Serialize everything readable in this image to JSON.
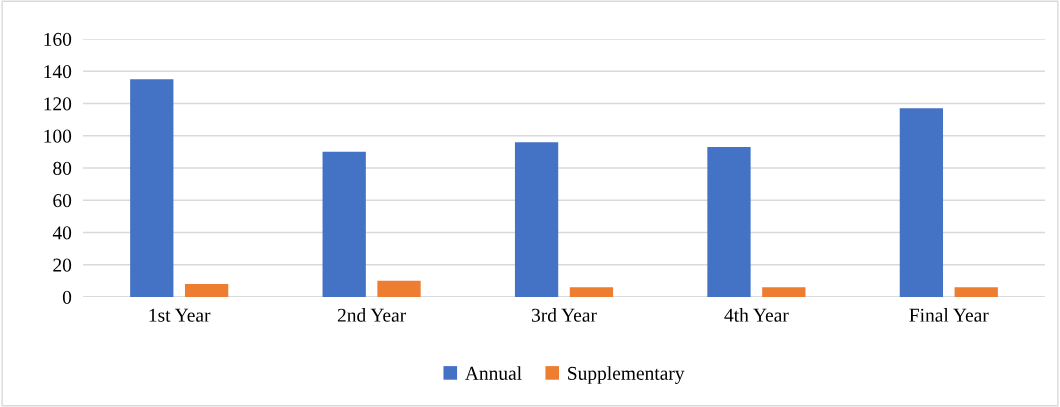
{
  "chart_data": {
    "type": "bar",
    "categories": [
      "1st Year",
      "2nd Year",
      "3rd Year",
      "4th Year",
      "Final Year"
    ],
    "series": [
      {
        "name": "Annual",
        "color": "#4472c4",
        "values": [
          135,
          90,
          96,
          93,
          117
        ]
      },
      {
        "name": "Supplementary",
        "color": "#ed7d31",
        "values": [
          8,
          10,
          6,
          6,
          6
        ]
      }
    ],
    "ylim": [
      0,
      160
    ],
    "yticks": [
      0,
      20,
      40,
      60,
      80,
      100,
      120,
      140,
      160
    ],
    "grid": "y",
    "legend": "bottom"
  }
}
